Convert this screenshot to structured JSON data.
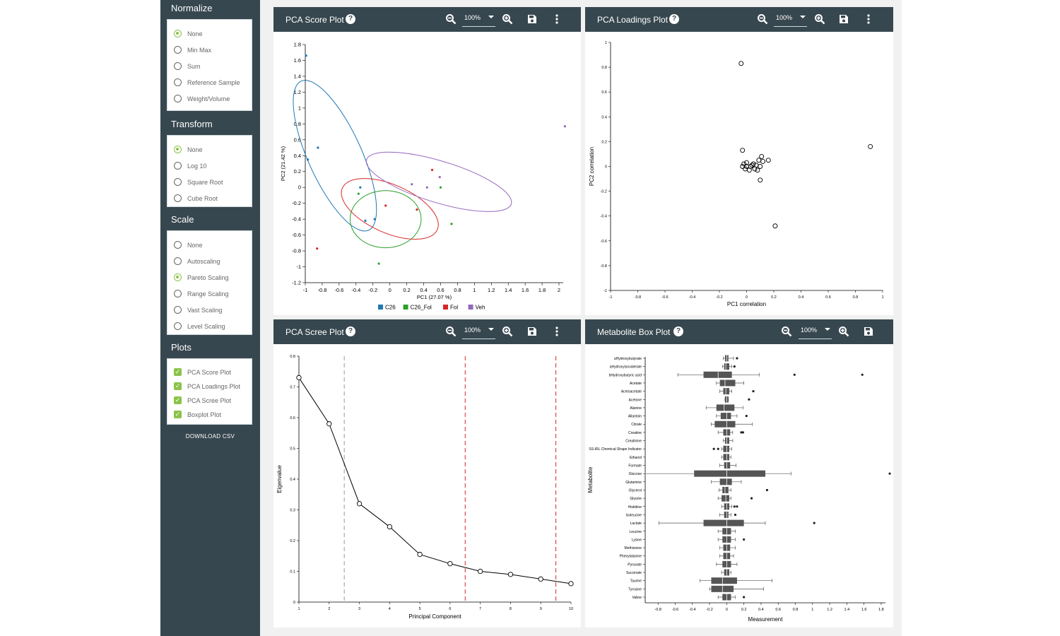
{
  "sidebar": {
    "normalize": {
      "title": "Normalize",
      "options": [
        "None",
        "Min Max",
        "Sum",
        "Reference Sample",
        "Weight/Volume"
      ],
      "selected": "None"
    },
    "transform": {
      "title": "Transform",
      "options": [
        "None",
        "Log 10",
        "Square Root",
        "Cube Root"
      ],
      "selected": "None"
    },
    "scale": {
      "title": "Scale",
      "options": [
        "None",
        "Autoscaling",
        "Pareto Scaling",
        "Range Scaling",
        "Vast Scaling",
        "Level Scaling"
      ],
      "selected": "Pareto Scaling"
    },
    "plots": {
      "title": "Plots",
      "items": [
        {
          "label": "PCA Score Plot",
          "checked": true
        },
        {
          "label": "PCA Loadings Plot",
          "checked": true
        },
        {
          "label": "PCA Scree Plot",
          "checked": true
        },
        {
          "label": "Boxplot Plot",
          "checked": true
        }
      ]
    },
    "download_label": "DOWNLOAD CSV"
  },
  "icons": {
    "zoom_out": "zoom-out-icon",
    "zoom_in": "zoom-in-icon",
    "save": "save-icon",
    "more": "more-vert-icon",
    "help": "help-icon"
  },
  "colors": {
    "header": "#37474f",
    "accent": "#8bc34a",
    "C26": "#1f77b4",
    "C26_Fol": "#2ca02c",
    "Fol": "#d62728",
    "Veh": "#9467bd",
    "box": "#555555"
  },
  "panels": {
    "score": {
      "title": "PCA Score Plot",
      "zoom": "100%",
      "help": "?"
    },
    "loadings": {
      "title": "PCA Loadings Plot",
      "zoom": "100%",
      "help": "?"
    },
    "scree": {
      "title": "PCA Scree Plot",
      "zoom": "100%",
      "help": "?"
    },
    "box": {
      "title": "Metabolite Box Plot",
      "zoom": "100%",
      "help": "?"
    }
  },
  "chart_data": [
    {
      "type": "scatter",
      "id": "score",
      "xlabel": "PC1 (27.07 %)",
      "ylabel": "PC2 (21.42 %)",
      "xlim": [
        -1,
        2.05
      ],
      "ylim": [
        -1.2,
        1.8
      ],
      "xticks": [
        -1,
        -0.8,
        -0.6,
        -0.4,
        -0.2,
        0,
        0.2,
        0.4,
        0.6,
        0.8,
        1,
        1.2,
        1.4,
        1.6,
        1.8,
        2
      ],
      "yticks": [
        -1.2,
        -1,
        -0.8,
        -0.6,
        -0.4,
        -0.2,
        0,
        0.2,
        0.4,
        0.6,
        0.8,
        1,
        1.2,
        1.4,
        1.6,
        1.8
      ],
      "legend": "bottom",
      "series": [
        {
          "name": "C26",
          "color": "#1f77b4",
          "points": [
            [
              -0.99,
              1.66
            ],
            [
              -0.97,
              0.35
            ],
            [
              -0.85,
              0.5
            ],
            [
              -0.35,
              0.0
            ],
            [
              -0.29,
              -0.42
            ],
            [
              -0.18,
              -0.4
            ]
          ]
        },
        {
          "name": "C26_Fol",
          "color": "#2ca02c",
          "points": [
            [
              -0.37,
              -0.08
            ],
            [
              -0.13,
              -0.96
            ],
            [
              0.73,
              -0.46
            ],
            [
              0.6,
              0.0
            ]
          ]
        },
        {
          "name": "Fol",
          "color": "#d62728",
          "points": [
            [
              -0.86,
              -0.77
            ],
            [
              -0.05,
              -0.23
            ],
            [
              0.32,
              -0.28
            ],
            [
              0.5,
              0.22
            ]
          ]
        },
        {
          "name": "Veh",
          "color": "#9467bd",
          "points": [
            [
              0.26,
              0.04
            ],
            [
              0.44,
              0.0
            ],
            [
              0.59,
              0.13
            ],
            [
              2.07,
              0.77
            ]
          ]
        }
      ],
      "ellipses": [
        {
          "series": "C26",
          "color": "#1f77b4",
          "cx": -0.65,
          "cy": 0.4,
          "rx": 1.02,
          "ry": 0.32,
          "angle": -67
        },
        {
          "series": "C26_Fol",
          "color": "#2ca02c",
          "cx": -0.05,
          "cy": -0.4,
          "rx": 0.42,
          "ry": 0.36,
          "angle": 0
        },
        {
          "series": "Fol",
          "color": "#d62728",
          "cx": 0.0,
          "cy": -0.27,
          "rx": 0.62,
          "ry": 0.3,
          "angle": -25
        },
        {
          "series": "Veh",
          "color": "#9467bd",
          "cx": 0.58,
          "cy": 0.07,
          "rx": 0.9,
          "ry": 0.26,
          "angle": -18
        }
      ]
    },
    {
      "type": "scatter",
      "id": "loadings",
      "xlabel": "PC1 correlation",
      "ylabel": "PC2 correlation",
      "xlim": [
        -1,
        1
      ],
      "ylim": [
        -1,
        1
      ],
      "xticks": [
        -1,
        -0.8,
        -0.6,
        -0.4,
        -0.2,
        0,
        0.2,
        0.4,
        0.6,
        0.8,
        1
      ],
      "yticks": [
        -1,
        -0.8,
        -0.6,
        -0.4,
        -0.2,
        0,
        0.2,
        0.4,
        0.6,
        0.8,
        1
      ],
      "points": [
        [
          -0.04,
          0.83
        ],
        [
          -0.03,
          0.13
        ],
        [
          0.91,
          0.16
        ],
        [
          0.21,
          -0.48
        ],
        [
          0.1,
          -0.11
        ],
        [
          0.11,
          0.08
        ],
        [
          0.16,
          0.05
        ],
        [
          -0.02,
          0.02
        ],
        [
          0.0,
          0.0
        ],
        [
          0.02,
          -0.03
        ],
        [
          0.04,
          0.01
        ],
        [
          0.06,
          -0.02
        ],
        [
          -0.03,
          0.0
        ],
        [
          0.05,
          0.02
        ],
        [
          0.08,
          -0.03
        ],
        [
          0.1,
          0.0
        ],
        [
          0.12,
          0.04
        ],
        [
          0.0,
          0.03
        ],
        [
          -0.01,
          -0.02
        ],
        [
          0.03,
          0.0
        ],
        [
          0.07,
          0.01
        ],
        [
          0.09,
          0.05
        ]
      ]
    },
    {
      "type": "line",
      "id": "scree",
      "xlabel": "Principal Component",
      "ylabel": "Eigenvalue",
      "xlim": [
        1,
        10
      ],
      "ylim": [
        0,
        0.8
      ],
      "xticks": [
        1,
        2,
        3,
        4,
        5,
        6,
        7,
        8,
        9,
        10
      ],
      "yticks": [
        0,
        0.1,
        0.2,
        0.3,
        0.4,
        0.5,
        0.6,
        0.7,
        0.8
      ],
      "x": [
        1,
        2,
        3,
        4,
        5,
        6,
        7,
        8,
        9,
        10
      ],
      "y": [
        0.73,
        0.58,
        0.32,
        0.245,
        0.155,
        0.125,
        0.1,
        0.09,
        0.075,
        0.06
      ],
      "vlines": [
        {
          "x": 2.5,
          "color": "#999999"
        },
        {
          "x": 6.5,
          "color": "#d62728"
        },
        {
          "x": 9.5,
          "color": "#d62728"
        }
      ]
    },
    {
      "type": "box",
      "id": "box",
      "xlabel": "Measurement",
      "ylabel": "Metabolite",
      "xlim": [
        -0.95,
        1.85
      ],
      "xticks": [
        -0.8,
        -0.6,
        -0.4,
        -0.2,
        0,
        0.2,
        0.4,
        0.6,
        0.8,
        1,
        1.2,
        1.4,
        1.6,
        1.8
      ],
      "categories": [
        "aHydroxybutyrate",
        "aHydroxyisovalerate",
        "bHydroxybutyric acid",
        "Acetate",
        "Acetoacetate",
        "Acetone",
        "Alanine",
        "Allantoin",
        "Citrate",
        "Creatine",
        "Creatinine",
        "SS-IRL Chemical Shape Indicator",
        "Ethanol",
        "Formate",
        "Glucose",
        "Glutamine",
        "Glycerol",
        "Glycine",
        "Histidine",
        "Isoleucine",
        "Lactate",
        "Leucine",
        "Lysine",
        "Methionine",
        "Phenylalanine",
        "Pyruvate",
        "Succinate",
        "Taurine",
        "Tyrosine",
        "Valine"
      ],
      "boxes": [
        [
          -0.04,
          -0.02,
          0.0,
          0.02,
          0.08,
          [
            0.12
          ]
        ],
        [
          -0.05,
          -0.03,
          -0.01,
          0.03,
          0.06,
          [
            0.09
          ]
        ],
        [
          -0.57,
          -0.27,
          -0.1,
          0.06,
          0.38,
          [
            0.79,
            1.58
          ]
        ],
        [
          -0.12,
          -0.08,
          -0.02,
          0.1,
          0.2,
          []
        ],
        [
          -0.08,
          -0.04,
          -0.01,
          0.03,
          0.06,
          [
            0.31
          ]
        ],
        [
          -0.02,
          -0.02,
          0.0,
          0.02,
          0.02,
          [
            0.26
          ]
        ],
        [
          -0.24,
          -0.12,
          -0.03,
          0.09,
          0.19,
          []
        ],
        [
          -0.12,
          -0.07,
          0.0,
          0.05,
          0.12,
          [
            0.23
          ]
        ],
        [
          -0.18,
          -0.14,
          0.0,
          0.1,
          0.3,
          []
        ],
        [
          -0.1,
          -0.04,
          0.0,
          0.04,
          0.07,
          [
            0.17,
            0.19
          ]
        ],
        [
          -0.04,
          -0.02,
          0.0,
          0.03,
          0.07,
          []
        ],
        [
          -0.06,
          -0.04,
          0.0,
          0.03,
          0.06,
          [
            -0.15,
            -0.1
          ]
        ],
        [
          -0.06,
          -0.04,
          0.0,
          0.03,
          0.05,
          []
        ],
        [
          -0.08,
          -0.03,
          0.0,
          0.04,
          0.11,
          []
        ],
        [
          -0.95,
          -0.38,
          0.0,
          0.45,
          0.75,
          [
            1.9
          ]
        ],
        [
          -0.18,
          -0.08,
          0.0,
          0.06,
          0.17,
          []
        ],
        [
          -0.09,
          -0.05,
          -0.02,
          0.02,
          0.05,
          [
            0.47
          ]
        ],
        [
          -0.1,
          -0.06,
          -0.01,
          0.03,
          0.05,
          [
            0.29
          ]
        ],
        [
          -0.06,
          -0.03,
          0.0,
          0.03,
          0.06,
          [
            0.09,
            0.12
          ]
        ],
        [
          -0.08,
          -0.03,
          0.0,
          0.02,
          0.05,
          [
            0.1
          ]
        ],
        [
          -0.79,
          -0.27,
          0.0,
          0.2,
          0.45,
          [
            1.02
          ]
        ],
        [
          -0.1,
          -0.05,
          0.0,
          0.05,
          0.1,
          []
        ],
        [
          -0.1,
          -0.05,
          0.0,
          0.05,
          0.1,
          [
            0.2
          ]
        ],
        [
          -0.08,
          -0.04,
          0.0,
          0.04,
          0.1,
          []
        ],
        [
          -0.08,
          -0.04,
          0.0,
          0.04,
          0.08,
          []
        ],
        [
          -0.12,
          -0.05,
          0.0,
          0.05,
          0.12,
          []
        ],
        [
          -0.06,
          -0.03,
          0.0,
          0.03,
          0.05,
          []
        ],
        [
          -0.31,
          -0.18,
          -0.05,
          0.12,
          0.53,
          []
        ],
        [
          -0.2,
          -0.18,
          -0.05,
          0.08,
          0.43,
          []
        ],
        [
          -0.1,
          -0.05,
          0.0,
          0.05,
          0.1,
          [
            0.2
          ]
        ]
      ]
    }
  ]
}
